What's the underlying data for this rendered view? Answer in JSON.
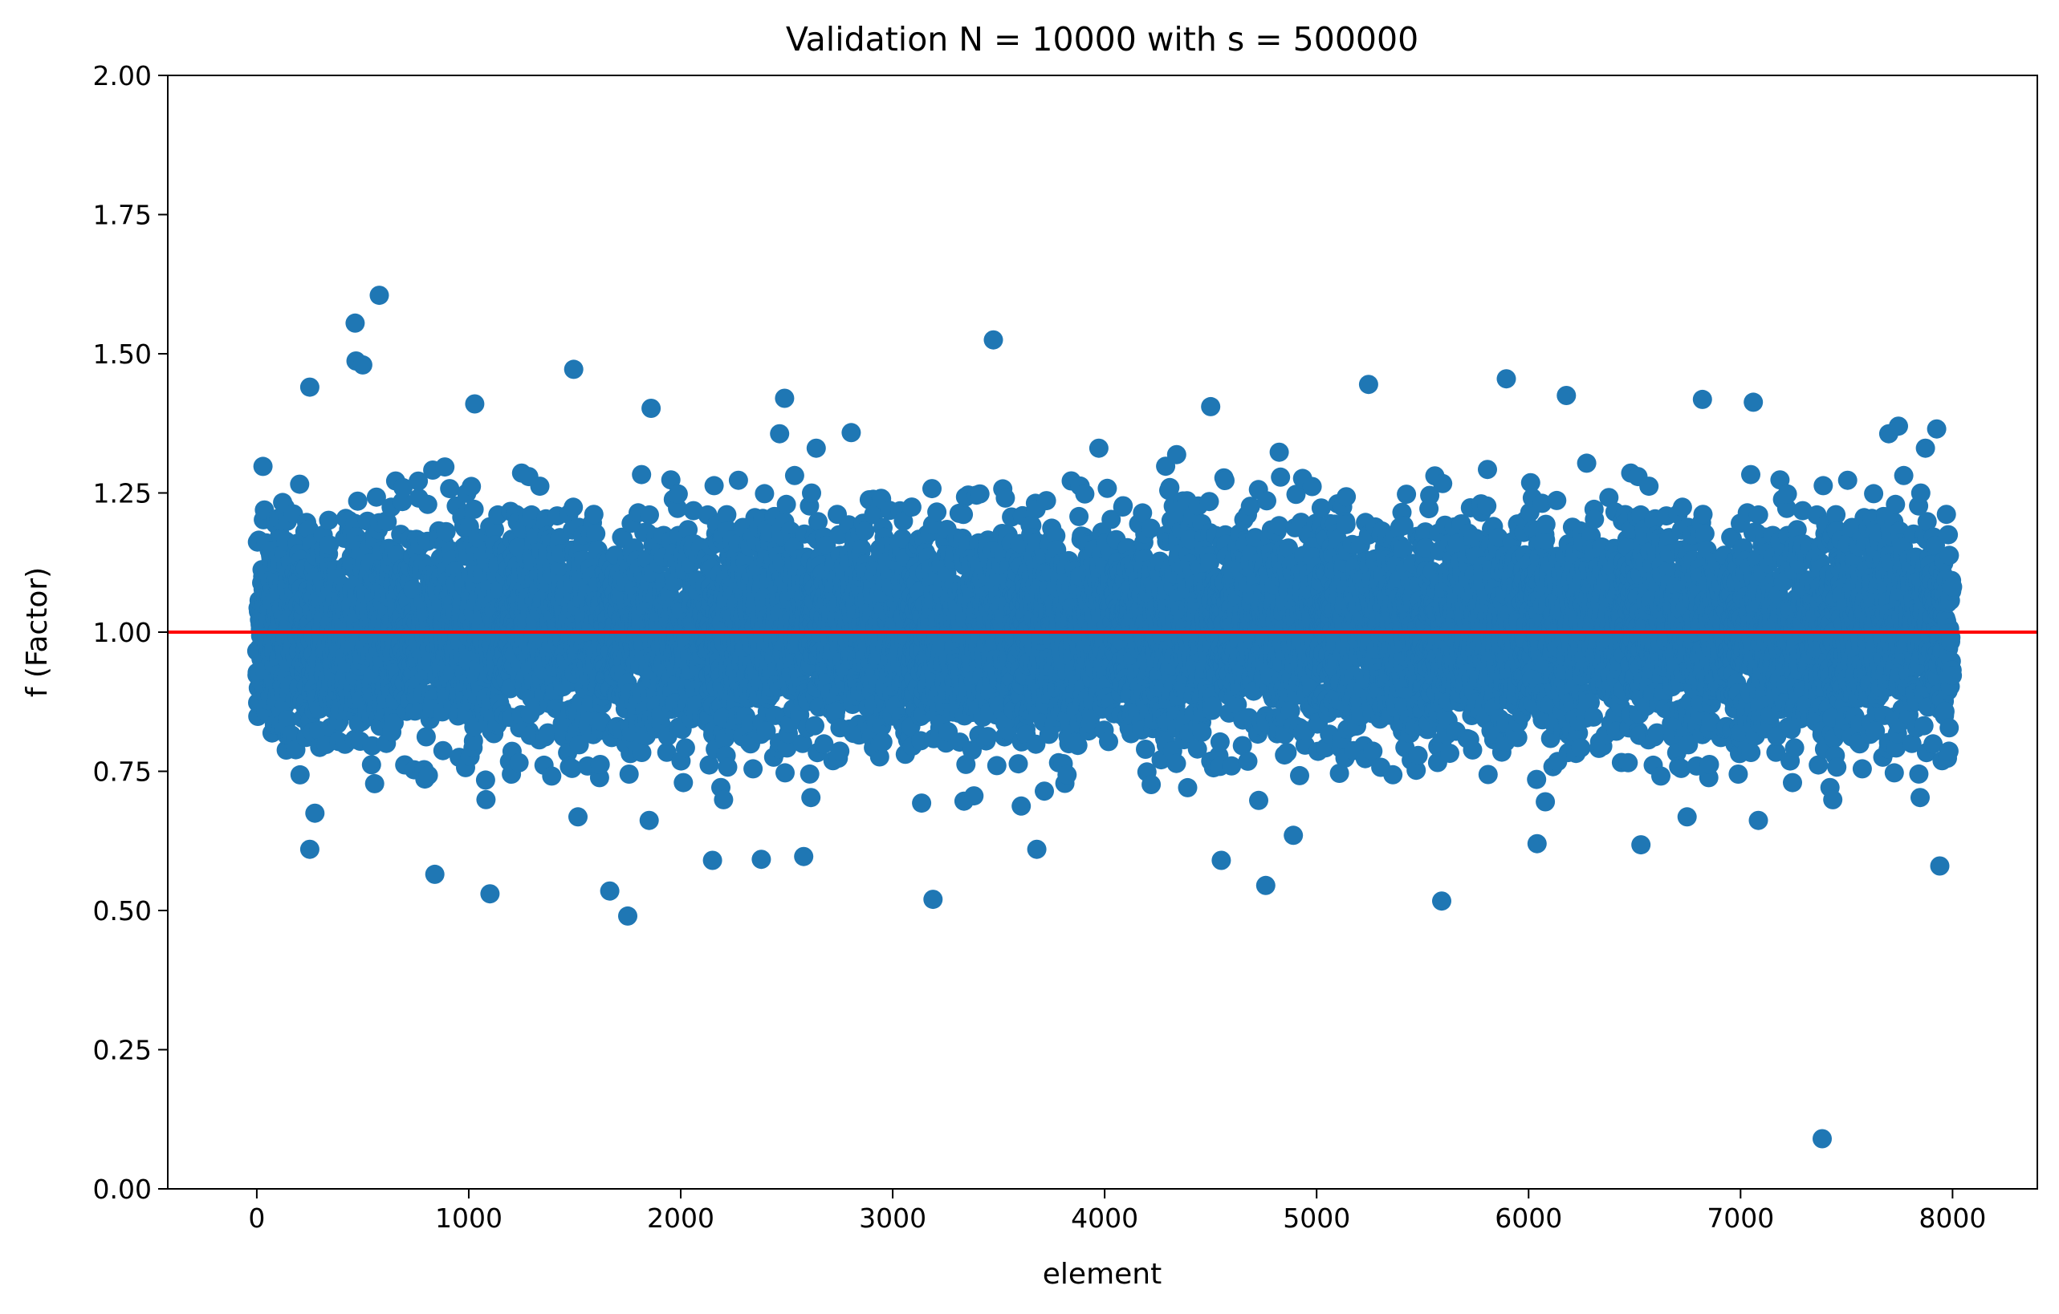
{
  "chart_data": {
    "type": "scatter",
    "title": "Validation N = 10000 with s = 500000",
    "xlabel": "element",
    "ylabel": "f (Factor)",
    "xlim": [
      -420,
      8400
    ],
    "ylim": [
      0,
      2
    ],
    "x_ticks": [
      "0",
      "1000",
      "2000",
      "3000",
      "4000",
      "5000",
      "6000",
      "7000",
      "8000"
    ],
    "y_ticks": [
      "0.00",
      "0.25",
      "0.50",
      "0.75",
      "1.00",
      "1.25",
      "1.50",
      "1.75",
      "2.00"
    ],
    "grid": false,
    "colors": {
      "points": "#1f77b4",
      "reference_line": "#ff0000"
    },
    "reference_line": {
      "y": 1.0
    },
    "series": {
      "n_points": 8000,
      "x_range": [
        0,
        8000
      ],
      "bulk_mean": 1.0,
      "bulk_spread": 0.1,
      "notable_points": [
        {
          "x": 578,
          "y": 1.605
        },
        {
          "x": 464,
          "y": 1.555
        },
        {
          "x": 468,
          "y": 1.487
        },
        {
          "x": 500,
          "y": 1.48
        },
        {
          "x": 1495,
          "y": 1.472
        },
        {
          "x": 3475,
          "y": 1.525
        },
        {
          "x": 5895,
          "y": 1.455
        },
        {
          "x": 5245,
          "y": 1.445
        },
        {
          "x": 250,
          "y": 1.44
        },
        {
          "x": 6178,
          "y": 1.425
        },
        {
          "x": 6820,
          "y": 1.418
        },
        {
          "x": 2490,
          "y": 1.42
        },
        {
          "x": 7060,
          "y": 1.413
        },
        {
          "x": 1028,
          "y": 1.41
        },
        {
          "x": 4500,
          "y": 1.405
        },
        {
          "x": 1860,
          "y": 1.402
        },
        {
          "x": 7745,
          "y": 1.37
        },
        {
          "x": 7925,
          "y": 1.365
        },
        {
          "x": 250,
          "y": 0.61
        },
        {
          "x": 840,
          "y": 0.565
        },
        {
          "x": 1100,
          "y": 0.53
        },
        {
          "x": 1665,
          "y": 0.535
        },
        {
          "x": 1750,
          "y": 0.49
        },
        {
          "x": 2150,
          "y": 0.59
        },
        {
          "x": 2380,
          "y": 0.592
        },
        {
          "x": 2580,
          "y": 0.597
        },
        {
          "x": 3190,
          "y": 0.52
        },
        {
          "x": 3680,
          "y": 0.61
        },
        {
          "x": 4550,
          "y": 0.59
        },
        {
          "x": 4760,
          "y": 0.545
        },
        {
          "x": 4890,
          "y": 0.635
        },
        {
          "x": 5590,
          "y": 0.517
        },
        {
          "x": 6040,
          "y": 0.62
        },
        {
          "x": 6530,
          "y": 0.618
        },
        {
          "x": 7940,
          "y": 0.58
        },
        {
          "x": 7385,
          "y": 0.09
        }
      ]
    }
  }
}
